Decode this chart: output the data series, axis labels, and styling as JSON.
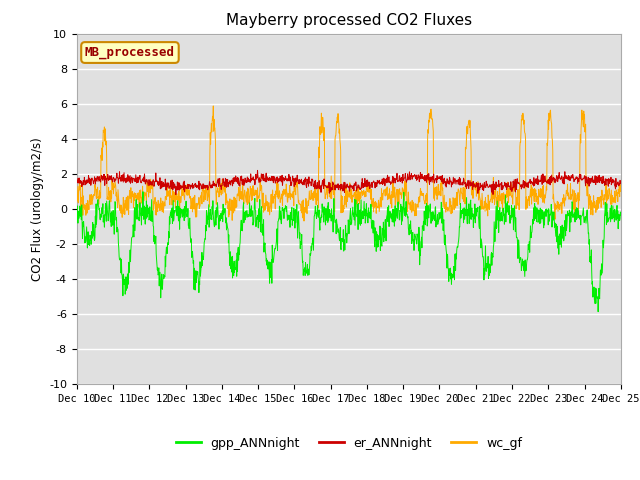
{
  "title": "Mayberry processed CO2 Fluxes",
  "ylabel": "CO2 Flux (urology/m2/s)",
  "ylim": [
    -10,
    10
  ],
  "yticks": [
    -10,
    -8,
    -6,
    -4,
    -2,
    0,
    2,
    4,
    6,
    8,
    10
  ],
  "xlim_days": [
    10,
    25
  ],
  "legend_label": "MB_processed",
  "legend_box_color": "#ffffc0",
  "legend_box_edge": "#cc8800",
  "legend_text_color": "#990000",
  "series_colors": {
    "gpp": "#00ee00",
    "er": "#cc0000",
    "wc": "#ffaa00"
  },
  "series_labels": {
    "gpp": "gpp_ANNnight",
    "er": "er_ANNnight",
    "wc": "wc_gf"
  },
  "plot_bg_color": "#e0e0e0",
  "fig_bg_color": "#ffffff",
  "grid_color": "#ffffff",
  "n_points": 1440,
  "seed": 42
}
